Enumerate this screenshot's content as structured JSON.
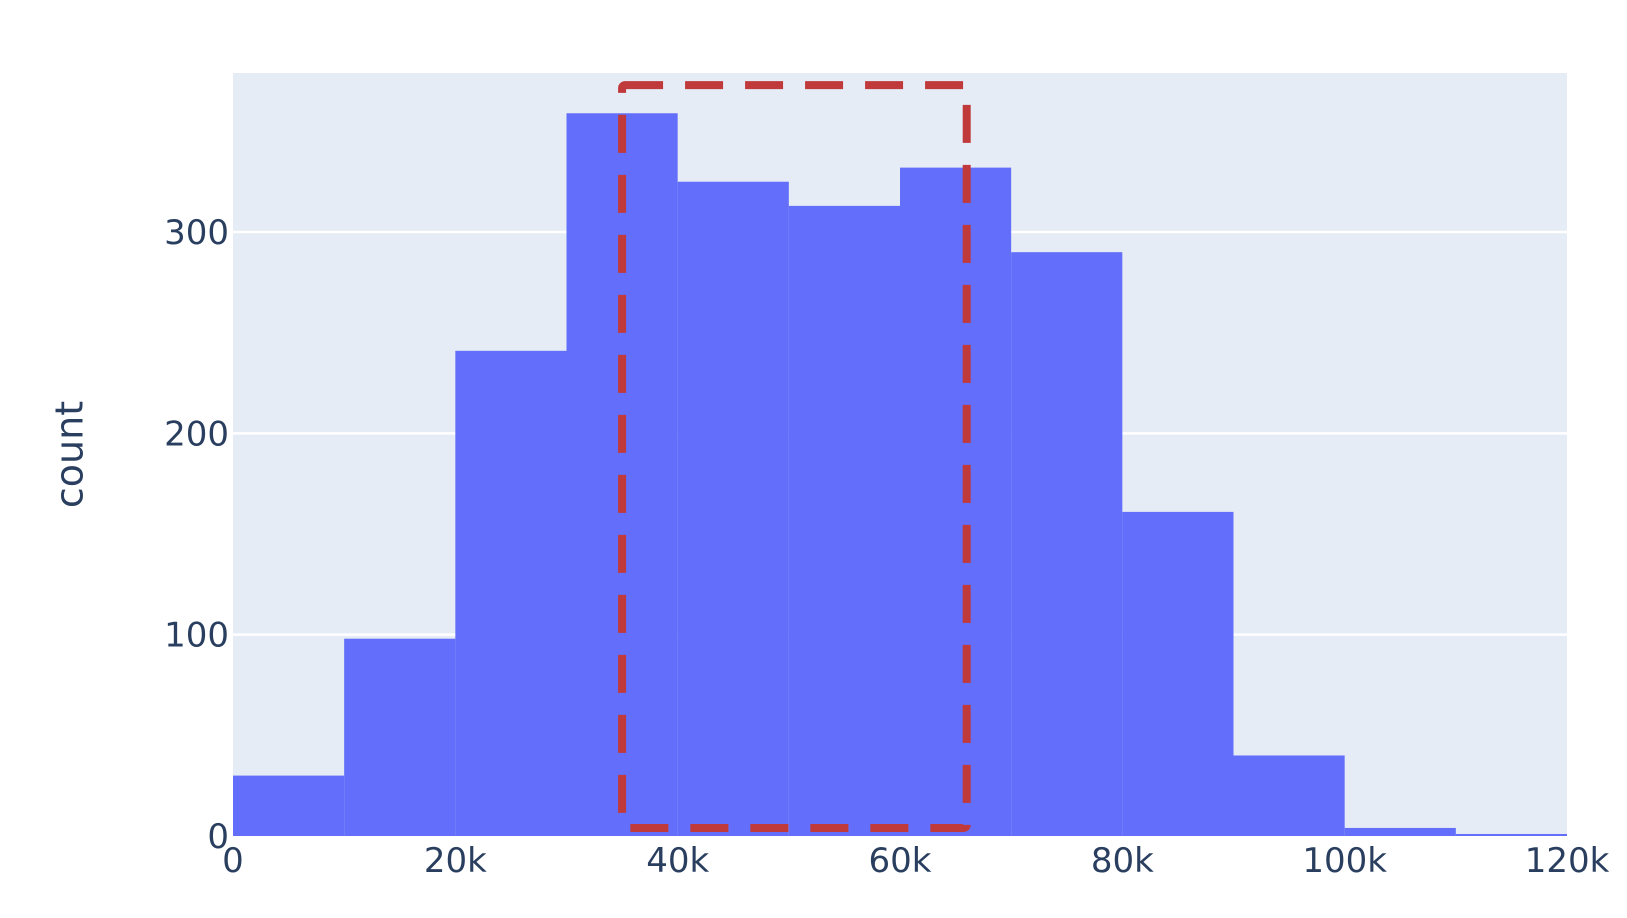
{
  "chart_data": {
    "type": "bar",
    "subtype": "histogram",
    "bins": [
      {
        "x0": 0,
        "x1": 10000,
        "count": 30
      },
      {
        "x0": 10000,
        "x1": 20000,
        "count": 98
      },
      {
        "x0": 20000,
        "x1": 30000,
        "count": 241
      },
      {
        "x0": 30000,
        "x1": 40000,
        "count": 359
      },
      {
        "x0": 40000,
        "x1": 50000,
        "count": 325
      },
      {
        "x0": 50000,
        "x1": 60000,
        "count": 313
      },
      {
        "x0": 60000,
        "x1": 70000,
        "count": 332
      },
      {
        "x0": 70000,
        "x1": 80000,
        "count": 290
      },
      {
        "x0": 80000,
        "x1": 90000,
        "count": 161
      },
      {
        "x0": 90000,
        "x1": 100000,
        "count": 40
      },
      {
        "x0": 100000,
        "x1": 110000,
        "count": 4
      },
      {
        "x0": 110000,
        "x1": 120000,
        "count": 1
      }
    ],
    "xlim": [
      0,
      120000
    ],
    "ylim": [
      0,
      379
    ],
    "x_ticks": [
      {
        "value": 0,
        "label": "0"
      },
      {
        "value": 20000,
        "label": "20k"
      },
      {
        "value": 40000,
        "label": "40k"
      },
      {
        "value": 60000,
        "label": "60k"
      },
      {
        "value": 80000,
        "label": "80k"
      },
      {
        "value": 100000,
        "label": "100k"
      },
      {
        "value": 120000,
        "label": "120k"
      }
    ],
    "y_ticks": [
      {
        "value": 0,
        "label": "0"
      },
      {
        "value": 100,
        "label": "100"
      },
      {
        "value": 200,
        "label": "200"
      },
      {
        "value": 300,
        "label": "300"
      }
    ],
    "xlabel": "",
    "ylabel": "count",
    "title": "",
    "grid": true,
    "annotation": {
      "type": "dashed-rectangle",
      "x_range": [
        35000,
        66000
      ],
      "y_range": [
        4,
        373
      ],
      "color": "#c0393b"
    },
    "colors": {
      "bar": "#636efa",
      "plot_background": "#e5ecf6",
      "gridline": "#ffffff",
      "text": "#2a3f5f"
    }
  }
}
